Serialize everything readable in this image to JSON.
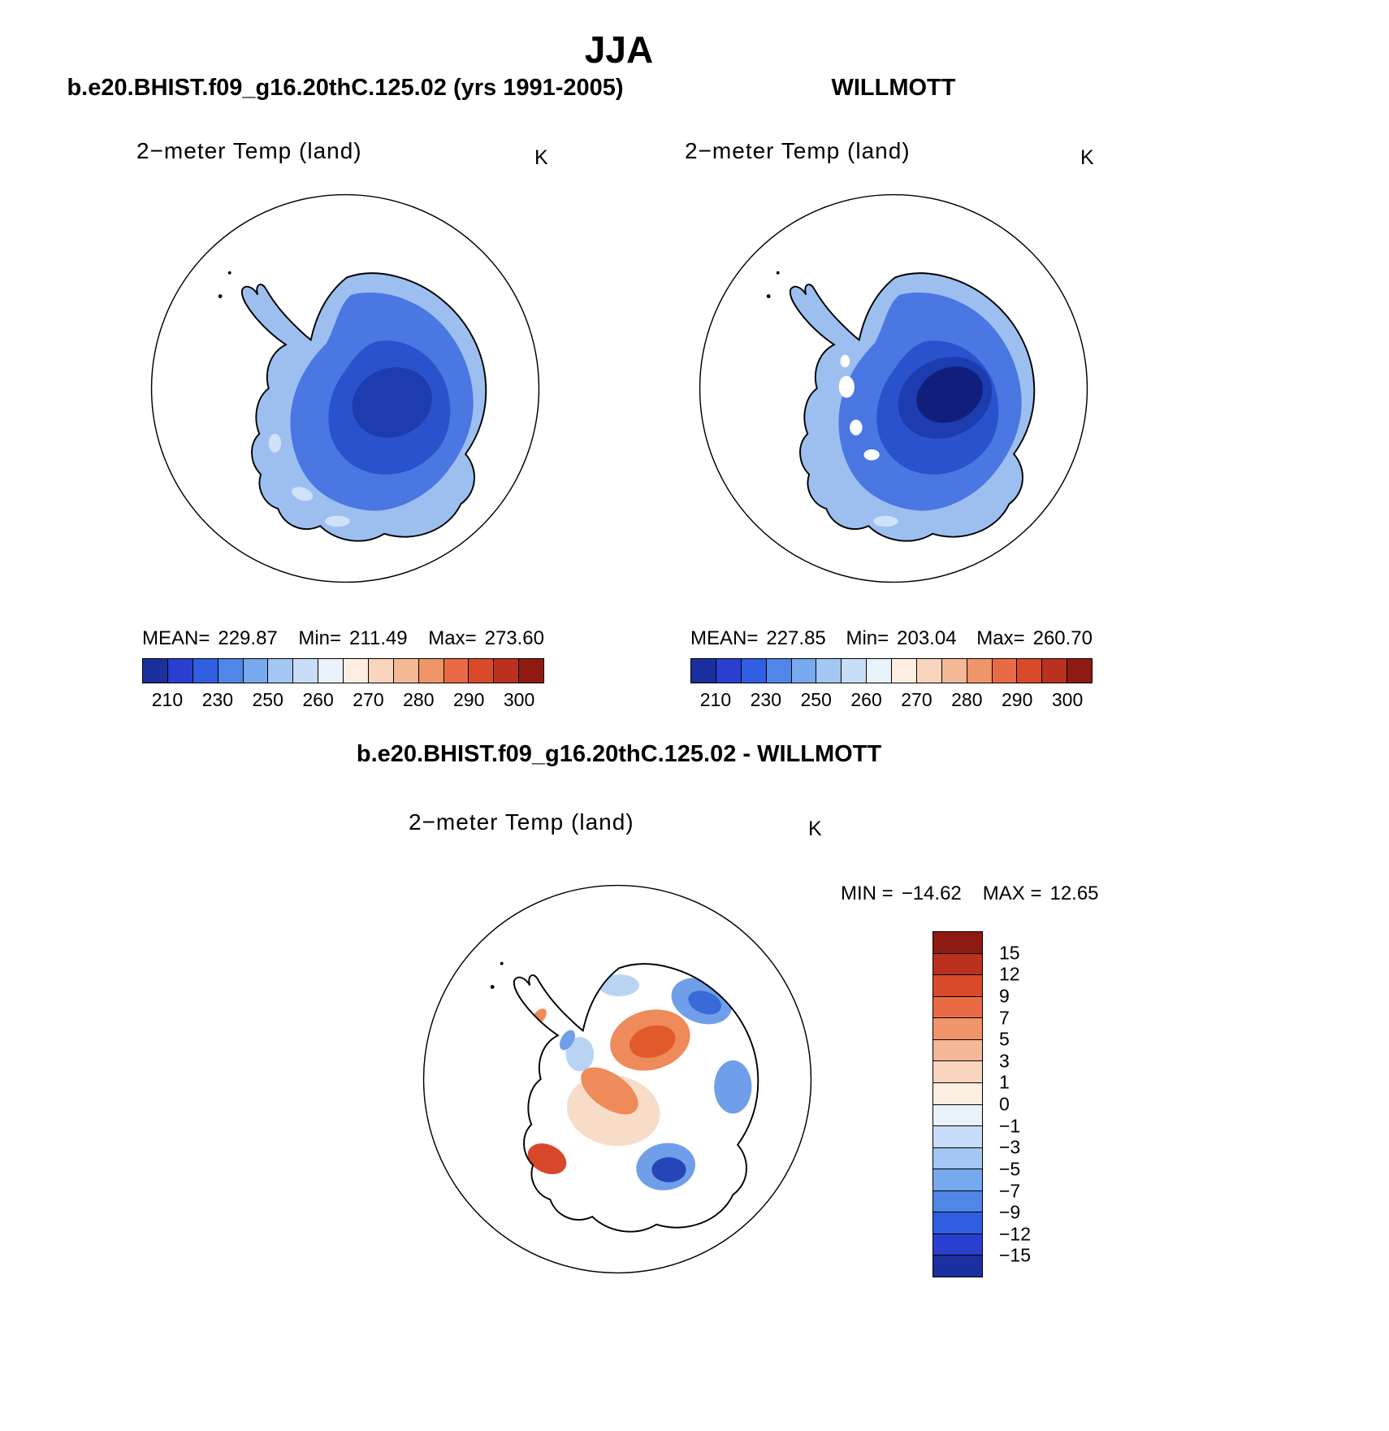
{
  "page_title": "JJA",
  "panels": {
    "model": {
      "header": "b.e20.BHIST.f09_g16.20thC.125.02 (yrs 1991-2005)",
      "map_title": "2−meter Temp (land)",
      "units": "K",
      "stats": {
        "mean_label": "MEAN=",
        "mean_value": "229.87",
        "min_label": "Min=",
        "min_value": "211.49",
        "max_label": "Max=",
        "max_value": "273.60"
      }
    },
    "obs": {
      "header": "WILLMOTT",
      "map_title": "2−meter Temp (land)",
      "units": "K",
      "stats": {
        "mean_label": "MEAN=",
        "mean_value": "227.85",
        "min_label": "Min=",
        "min_value": "203.04",
        "max_label": "Max=",
        "max_value": "260.70"
      }
    },
    "diff": {
      "header": "b.e20.BHIST.f09_g16.20thC.125.02 - WILLMOTT",
      "map_title": "2−meter Temp (land)",
      "units": "K",
      "stats": {
        "min_label": "MIN =",
        "min_value": "−14.62",
        "max_label": "MAX =",
        "max_value": "12.65"
      }
    }
  },
  "colorbar_temp": {
    "colors": [
      "#1b2f9e",
      "#2a3fd0",
      "#2f5ee0",
      "#4f86e8",
      "#77a9ee",
      "#a3c6f3",
      "#c9ddf8",
      "#e9f1fb",
      "#fdeee2",
      "#f9d5bd",
      "#f5b896",
      "#f0946a",
      "#e96b45",
      "#d94a2b",
      "#bb3120",
      "#8f1a12"
    ],
    "tick_labels": [
      "210",
      "230",
      "250",
      "260",
      "270",
      "280",
      "290",
      "300"
    ],
    "tick_positions": [
      1,
      3,
      5,
      7,
      9,
      11,
      13,
      15
    ],
    "segments": 16
  },
  "colorbar_diff": {
    "colors": [
      "#8f1a12",
      "#bb3120",
      "#d94a2b",
      "#e96b45",
      "#f0946a",
      "#f5b896",
      "#f9d5bd",
      "#fdeee2",
      "#e9f1fb",
      "#c9ddf8",
      "#a3c6f3",
      "#77a9ee",
      "#4f86e8",
      "#2f5ee0",
      "#2a3fd0",
      "#1b2f9e"
    ],
    "tick_labels": [
      "15",
      "12",
      "9",
      "7",
      "5",
      "3",
      "1",
      "0",
      "−1",
      "−3",
      "−5",
      "−7",
      "−9",
      "−12",
      "−15"
    ],
    "segments": 16
  },
  "palette": {
    "t_fringe": "#9dbff0",
    "t_main": "#4a77e2",
    "t_mid": "#2a52cc",
    "t_core_model": "#1c3cb0",
    "t_core_obs": "#111e7c",
    "t_pale": "#cfe2f8",
    "d_orange": "#ef8b5a",
    "d_orange_core": "#e05a2b",
    "d_red": "#d9472a",
    "d_blue_light": "#b9d4f2",
    "d_blue": "#6f9fe8",
    "d_blue_mid": "#3a6ad8",
    "d_blue_dark": "#2446b8",
    "d_pale_warm": "#f7dcc8"
  },
  "chart_data": [
    {
      "type": "heatmap",
      "title": "b.e20.BHIST.f09_g16.20thC.125.02 (yrs 1991-2005)",
      "subtitle": "2-meter Temp (land)",
      "season": "JJA",
      "units": "K",
      "stats": {
        "mean": 229.87,
        "min": 211.49,
        "max": 273.6
      },
      "colorbar_ticks": [
        210,
        230,
        250,
        260,
        270,
        280,
        290,
        300
      ],
      "legend_position": "bottom"
    },
    {
      "type": "heatmap",
      "title": "WILLMOTT",
      "subtitle": "2-meter Temp (land)",
      "season": "JJA",
      "units": "K",
      "stats": {
        "mean": 227.85,
        "min": 203.04,
        "max": 260.7
      },
      "colorbar_ticks": [
        210,
        230,
        250,
        260,
        270,
        280,
        290,
        300
      ],
      "legend_position": "bottom"
    },
    {
      "type": "heatmap",
      "title": "b.e20.BHIST.f09_g16.20thC.125.02 - WILLMOTT",
      "subtitle": "2-meter Temp (land)",
      "season": "JJA",
      "units": "K",
      "stats": {
        "min": -14.62,
        "max": 12.65
      },
      "colorbar_ticks": [
        15,
        12,
        9,
        7,
        5,
        3,
        1,
        0,
        -1,
        -3,
        -5,
        -7,
        -9,
        -12,
        -15
      ],
      "legend_position": "right"
    }
  ]
}
